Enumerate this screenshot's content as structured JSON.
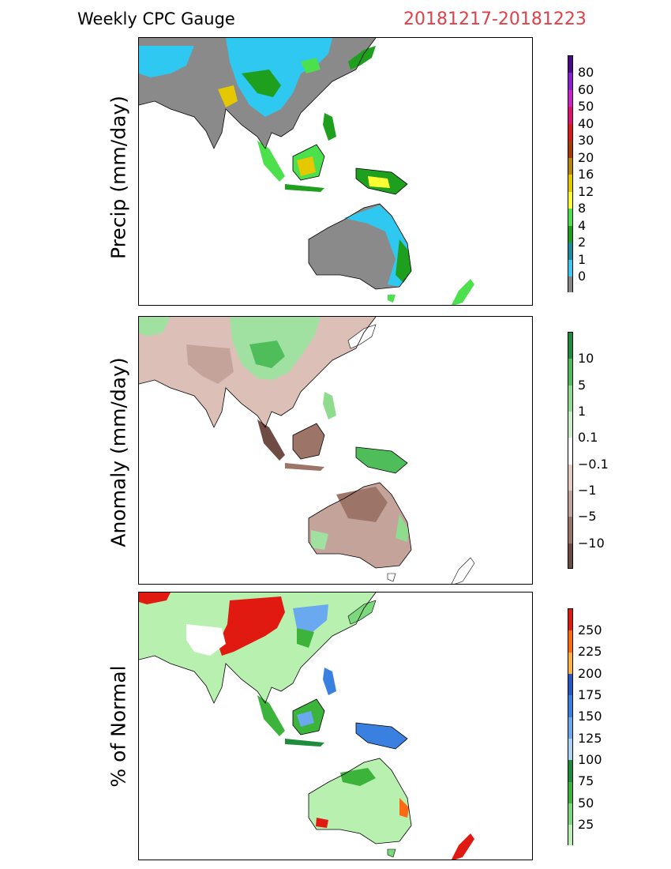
{
  "header": {
    "title": "Weekly CPC Gauge",
    "date_range": "20181217-20181223"
  },
  "panels": [
    {
      "id": "precip",
      "ylabel": "Precip (mm/day)",
      "colorbar": {
        "labels": [
          "80",
          "60",
          "50",
          "40",
          "30",
          "20",
          "16",
          "12",
          "8",
          "4",
          "2",
          "1",
          "0"
        ],
        "colors": [
          "#4b0a8c",
          "#8a1fd6",
          "#cc22cc",
          "#e0106e",
          "#d81a1a",
          "#a83a0a",
          "#b8860b",
          "#e6c800",
          "#ffff33",
          "#4de04d",
          "#1ea01e",
          "#1e8ca0",
          "#3cc8f0",
          "#888888"
        ]
      }
    },
    {
      "id": "anomaly",
      "ylabel": "Anomaly (mm/day)",
      "colorbar": {
        "labels": [
          "10",
          "5",
          "1",
          "0.1",
          "−0.1",
          "−1",
          "−5",
          "−10"
        ],
        "colors": [
          "#1e8c3c",
          "#4ebd5a",
          "#8fdc8f",
          "#c8f0c8",
          "#ffffff",
          "#e4cbc4",
          "#c4a49a",
          "#9c7468",
          "#6e4c44"
        ]
      }
    },
    {
      "id": "pct_normal",
      "ylabel": "% of Normal",
      "colorbar": {
        "labels": [
          "250",
          "225",
          "200",
          "175",
          "150",
          "125",
          "100",
          "75",
          "50",
          "25"
        ],
        "colors": [
          "#e01a10",
          "#ff6a10",
          "#ffb040",
          "#2458c8",
          "#3a80e0",
          "#6aa8f0",
          "#a8d4f8",
          "#1e8c3c",
          "#3cb43c",
          "#7cd87c",
          "#b8f0b0"
        ]
      }
    }
  ]
}
